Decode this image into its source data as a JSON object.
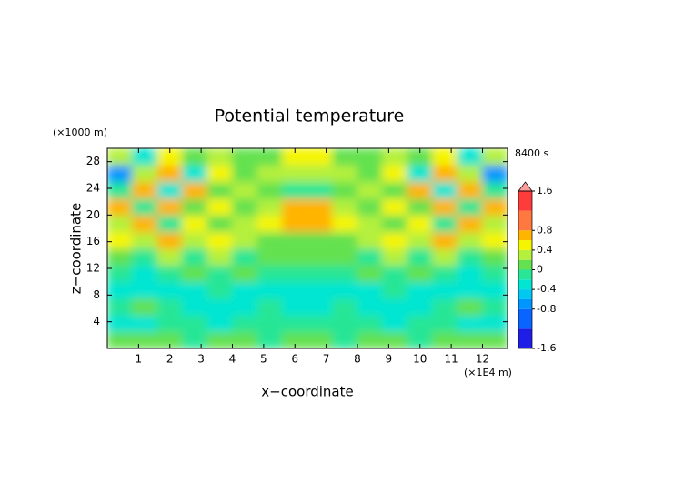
{
  "chart_data": {
    "type": "heatmap",
    "title": "Potential temperature",
    "time_label": "8400 s",
    "xlabel": "x−coordinate",
    "ylabel": "z−coordinate",
    "x_unit": "(×1E4 m)",
    "y_unit": "(×1000 m)",
    "xlim": [
      0,
      12.8
    ],
    "ylim": [
      0,
      30
    ],
    "xticks": [
      1,
      2,
      3,
      4,
      5,
      6,
      7,
      8,
      9,
      10,
      11,
      12
    ],
    "yticks": [
      4,
      8,
      12,
      16,
      20,
      24,
      28
    ],
    "x": [
      0.4,
      1.2,
      2.0,
      2.8,
      3.6,
      4.4,
      5.2,
      6.0,
      6.8,
      7.6,
      8.4,
      9.2,
      10.0,
      10.8,
      11.6,
      12.4
    ],
    "y": [
      1.25,
      3.75,
      6.25,
      8.75,
      11.25,
      13.75,
      16.25,
      18.75,
      21.25,
      23.75,
      26.25,
      28.75
    ],
    "z": [
      [
        0.1,
        0.05,
        0,
        -0.1,
        0,
        0,
        -0.1,
        0,
        0,
        -0.1,
        0,
        0,
        -0.1,
        0,
        0.05,
        0.1
      ],
      [
        -0.3,
        -0.3,
        -0.1,
        -0.2,
        -0.3,
        -0.1,
        -0.2,
        -0.1,
        -0.1,
        -0.2,
        -0.1,
        -0.3,
        -0.2,
        -0.1,
        -0.3,
        -0.3
      ],
      [
        -0.1,
        0.1,
        -0.1,
        -0.3,
        -0.3,
        -0.3,
        -0.1,
        -0.3,
        -0.3,
        -0.1,
        -0.3,
        -0.3,
        -0.3,
        -0.1,
        0.1,
        -0.1
      ],
      [
        -0.3,
        -0.3,
        -0.3,
        -0.3,
        -0.1,
        -0.3,
        -0.3,
        -0.3,
        -0.3,
        -0.3,
        -0.3,
        -0.1,
        -0.3,
        -0.3,
        -0.3,
        -0.3
      ],
      [
        -0.1,
        -0.3,
        -0.1,
        0.1,
        -0.1,
        0.1,
        -0.1,
        -0.1,
        -0.1,
        -0.1,
        0.1,
        -0.1,
        0.1,
        -0.1,
        -0.3,
        -0.1
      ],
      [
        0.1,
        -0.1,
        0.3,
        -0.1,
        0.3,
        -0.1,
        0.1,
        0.1,
        0.1,
        0.1,
        -0.1,
        0.3,
        -0.1,
        0.3,
        -0.1,
        0.1
      ],
      [
        0.5,
        0.3,
        0.7,
        0.3,
        0.5,
        0.3,
        0.1,
        0.1,
        0.1,
        0.1,
        0.3,
        0.5,
        0.3,
        0.7,
        0.3,
        0.5
      ],
      [
        0.3,
        0.7,
        -0.1,
        0.5,
        0.1,
        0.3,
        0.5,
        0.7,
        0.7,
        0.5,
        0.3,
        0.1,
        0.5,
        -0.1,
        0.7,
        0.3
      ],
      [
        0.7,
        -0.1,
        0.7,
        0.1,
        0.5,
        0.1,
        0.3,
        0.7,
        0.7,
        0.3,
        0.1,
        0.5,
        0.1,
        0.7,
        -0.1,
        0.7
      ],
      [
        -0.1,
        0.7,
        -0.3,
        0.7,
        0.1,
        0.3,
        0.1,
        -0.1,
        -0.1,
        0.1,
        0.3,
        0.1,
        0.7,
        -0.3,
        0.7,
        -0.1
      ],
      [
        -0.7,
        0.3,
        0.7,
        -0.3,
        0.5,
        0.1,
        0.3,
        0.3,
        0.3,
        0.3,
        0.1,
        0.5,
        -0.3,
        0.7,
        0.3,
        -0.7
      ],
      [
        0.3,
        -0.3,
        0.5,
        0.1,
        0.3,
        0.1,
        0.1,
        0.5,
        0.5,
        0.1,
        0.1,
        0.3,
        0.1,
        0.5,
        -0.3,
        0.3
      ]
    ],
    "color_levels": [
      -2,
      -1.6,
      -1.2,
      -0.8,
      -0.6,
      -0.4,
      -0.2,
      0,
      0.2,
      0.4,
      0.6,
      0.8,
      1.2,
      1.6,
      2
    ],
    "colors": [
      "#8c1ec8",
      "#1e1ee6",
      "#0a64ff",
      "#0096ff",
      "#00c8f0",
      "#00e6d2",
      "#28e696",
      "#64e150",
      "#b4f03c",
      "#f5f500",
      "#ffb400",
      "#ff7840",
      "#ff3c3c",
      "#ff9b9b"
    ],
    "colorbar_ticks": [
      -1.6,
      -0.8,
      -0.4,
      0,
      0.4,
      0.8,
      1.6
    ]
  }
}
